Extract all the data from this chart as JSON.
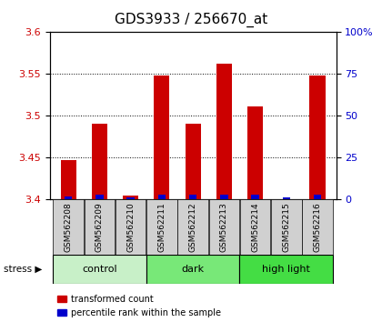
{
  "title": "GDS3933 / 256670_at",
  "samples": [
    "GSM562208",
    "GSM562209",
    "GSM562210",
    "GSM562211",
    "GSM562212",
    "GSM562213",
    "GSM562214",
    "GSM562215",
    "GSM562216"
  ],
  "red_values": [
    3.447,
    3.491,
    3.405,
    3.548,
    3.491,
    3.562,
    3.511,
    3.4,
    3.548
  ],
  "blue_values": [
    2.0,
    3.0,
    1.5,
    3.0,
    3.0,
    3.0,
    3.0,
    1.5,
    3.0
  ],
  "ylim_left": [
    3.4,
    3.6
  ],
  "ylim_right": [
    0,
    100
  ],
  "yticks_left": [
    3.4,
    3.45,
    3.5,
    3.55,
    3.6
  ],
  "yticks_right": [
    0,
    25,
    50,
    75,
    100
  ],
  "yticklabels_right": [
    "0",
    "25",
    "50",
    "75",
    "100%"
  ],
  "groups": [
    {
      "label": "control",
      "start": 0,
      "end": 3,
      "color": "#c8f0c8"
    },
    {
      "label": "dark",
      "start": 3,
      "end": 6,
      "color": "#78e878"
    },
    {
      "label": "high light",
      "start": 6,
      "end": 9,
      "color": "#44dd44"
    }
  ],
  "group_bar_color": "#d0d0d0",
  "red_color": "#cc0000",
  "blue_color": "#0000cc",
  "legend_items": [
    "transformed count",
    "percentile rank within the sample"
  ],
  "bar_width": 0.5,
  "blue_bar_width": 0.25
}
